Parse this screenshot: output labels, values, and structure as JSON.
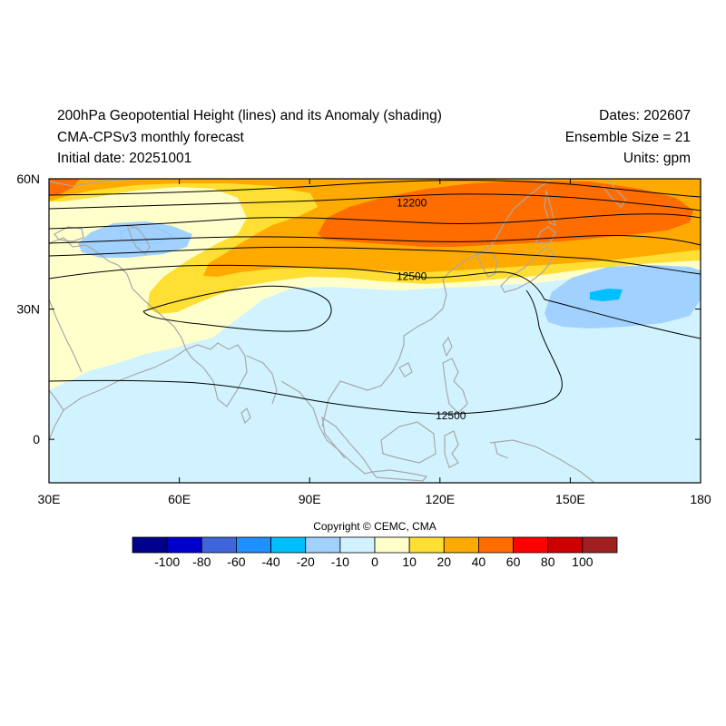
{
  "header": {
    "title_line1": "200hPa Geopotential Height (lines) and its Anomaly (shading)",
    "title_line2": "CMA-CPSv3 monthly forecast",
    "title_line3": "Initial date: 20251001",
    "dates": "Dates: 202607",
    "ensemble": "Ensemble Size = 21",
    "units": "Units: gpm"
  },
  "map": {
    "lon_range": [
      30,
      180
    ],
    "lat_range": [
      -10,
      60
    ],
    "x_ticks": [
      {
        "lon": 30,
        "label": "30E"
      },
      {
        "lon": 60,
        "label": "60E"
      },
      {
        "lon": 90,
        "label": "90E"
      },
      {
        "lon": 120,
        "label": "120E"
      },
      {
        "lon": 150,
        "label": "150E"
      },
      {
        "lon": 180,
        "label": "180"
      }
    ],
    "y_ticks": [
      {
        "lat": 60,
        "label": "60N"
      },
      {
        "lat": 30,
        "label": "30N"
      },
      {
        "lat": 0,
        "label": "0"
      }
    ],
    "contour_labels": [
      {
        "lon": 113.5,
        "lat": 54.5,
        "text": "12200"
      },
      {
        "lon": 113.5,
        "lat": 37.5,
        "text": "12500"
      },
      {
        "lon": 122.5,
        "lat": 5.5,
        "text": "12500"
      }
    ]
  },
  "colorbar": {
    "colors": [
      "#00008c",
      "#0000cd",
      "#3f65db",
      "#1e90ff",
      "#00bfff",
      "#a0d1ff",
      "#d1f3ff",
      "#ffffcc",
      "#ffdf33",
      "#ffaa00",
      "#ff6d00",
      "#ff0000",
      "#cc0000",
      "#a02020"
    ],
    "labels": [
      "-100",
      "-80",
      "-60",
      "-40",
      "-20",
      "-10",
      "0",
      "10",
      "20",
      "40",
      "60",
      "80",
      "100"
    ]
  },
  "copyright": "Copyright © CEMC, CMA"
}
